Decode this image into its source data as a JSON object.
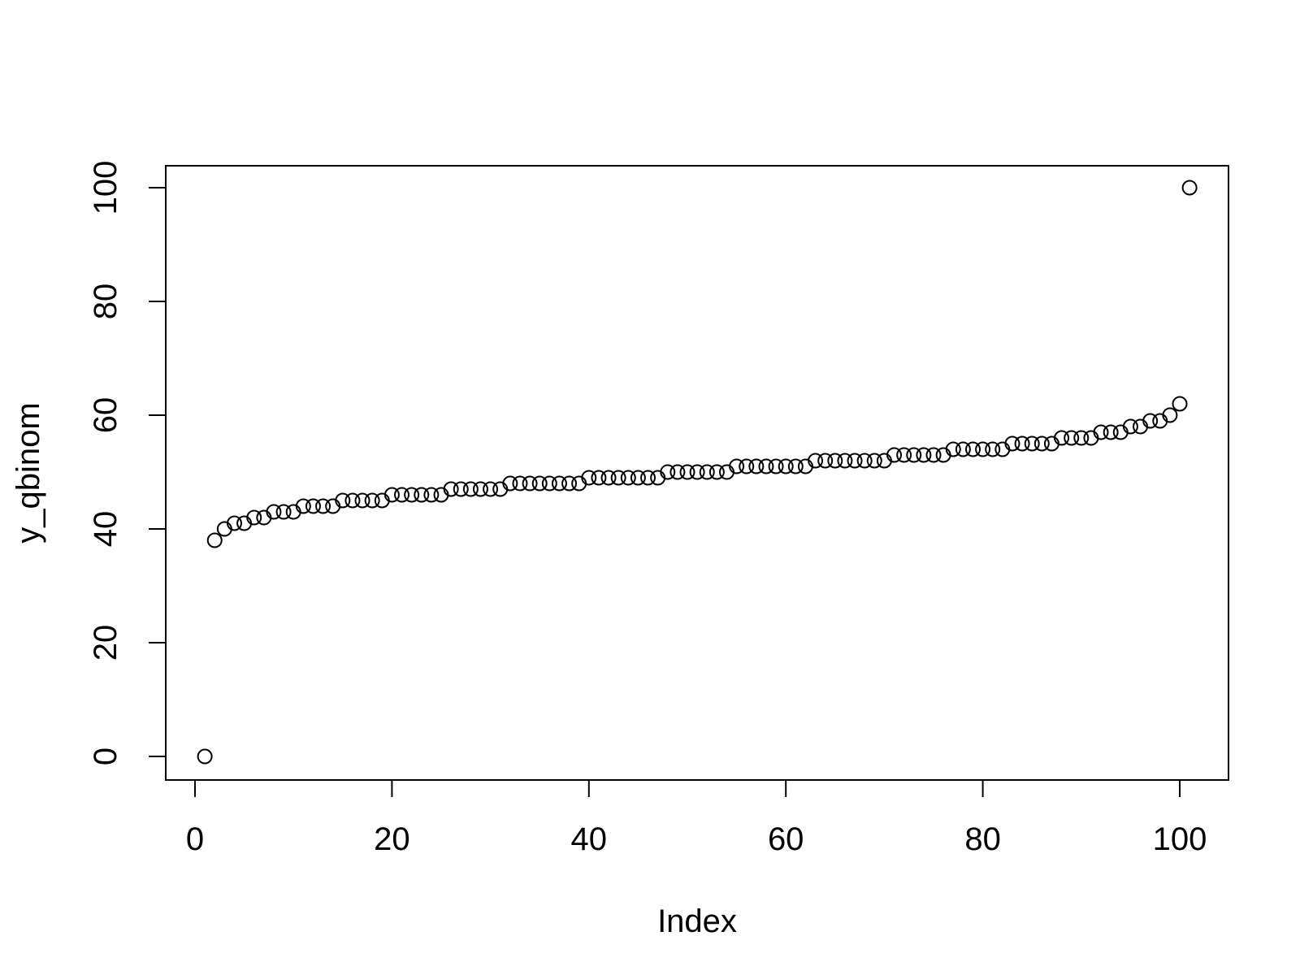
{
  "chart_data": {
    "type": "scatter",
    "title": "",
    "xlabel": "Index",
    "ylabel": "y_qbinom",
    "xlim": [
      0,
      101
    ],
    "ylim": [
      0,
      100
    ],
    "x_ticks": [
      "0",
      "20",
      "40",
      "60",
      "80",
      "100"
    ],
    "y_ticks": [
      "0",
      "20",
      "40",
      "60",
      "80",
      "100"
    ],
    "grid": false,
    "legend": "none",
    "marker": "open-circle",
    "colors": {
      "marker_stroke": "#000000",
      "axis": "#000000",
      "background": "#ffffff"
    },
    "x": [
      1,
      2,
      3,
      4,
      5,
      6,
      7,
      8,
      9,
      10,
      11,
      12,
      13,
      14,
      15,
      16,
      17,
      18,
      19,
      20,
      21,
      22,
      23,
      24,
      25,
      26,
      27,
      28,
      29,
      30,
      31,
      32,
      33,
      34,
      35,
      36,
      37,
      38,
      39,
      40,
      41,
      42,
      43,
      44,
      45,
      46,
      47,
      48,
      49,
      50,
      51,
      52,
      53,
      54,
      55,
      56,
      57,
      58,
      59,
      60,
      61,
      62,
      63,
      64,
      65,
      66,
      67,
      68,
      69,
      70,
      71,
      72,
      73,
      74,
      75,
      76,
      77,
      78,
      79,
      80,
      81,
      82,
      83,
      84,
      85,
      86,
      87,
      88,
      89,
      90,
      91,
      92,
      93,
      94,
      95,
      96,
      97,
      98,
      99,
      100,
      101
    ],
    "y": [
      0,
      38,
      40,
      41,
      41,
      42,
      42,
      43,
      43,
      43,
      44,
      44,
      44,
      44,
      45,
      45,
      45,
      45,
      45,
      46,
      46,
      46,
      46,
      46,
      46,
      47,
      47,
      47,
      47,
      47,
      47,
      48,
      48,
      48,
      48,
      48,
      48,
      48,
      48,
      49,
      49,
      49,
      49,
      49,
      49,
      49,
      49,
      50,
      50,
      50,
      50,
      50,
      50,
      50,
      51,
      51,
      51,
      51,
      51,
      51,
      51,
      51,
      52,
      52,
      52,
      52,
      52,
      52,
      52,
      52,
      53,
      53,
      53,
      53,
      53,
      53,
      54,
      54,
      54,
      54,
      54,
      54,
      55,
      55,
      55,
      55,
      55,
      56,
      56,
      56,
      56,
      57,
      57,
      57,
      58,
      58,
      59,
      59,
      60,
      62,
      100
    ]
  }
}
